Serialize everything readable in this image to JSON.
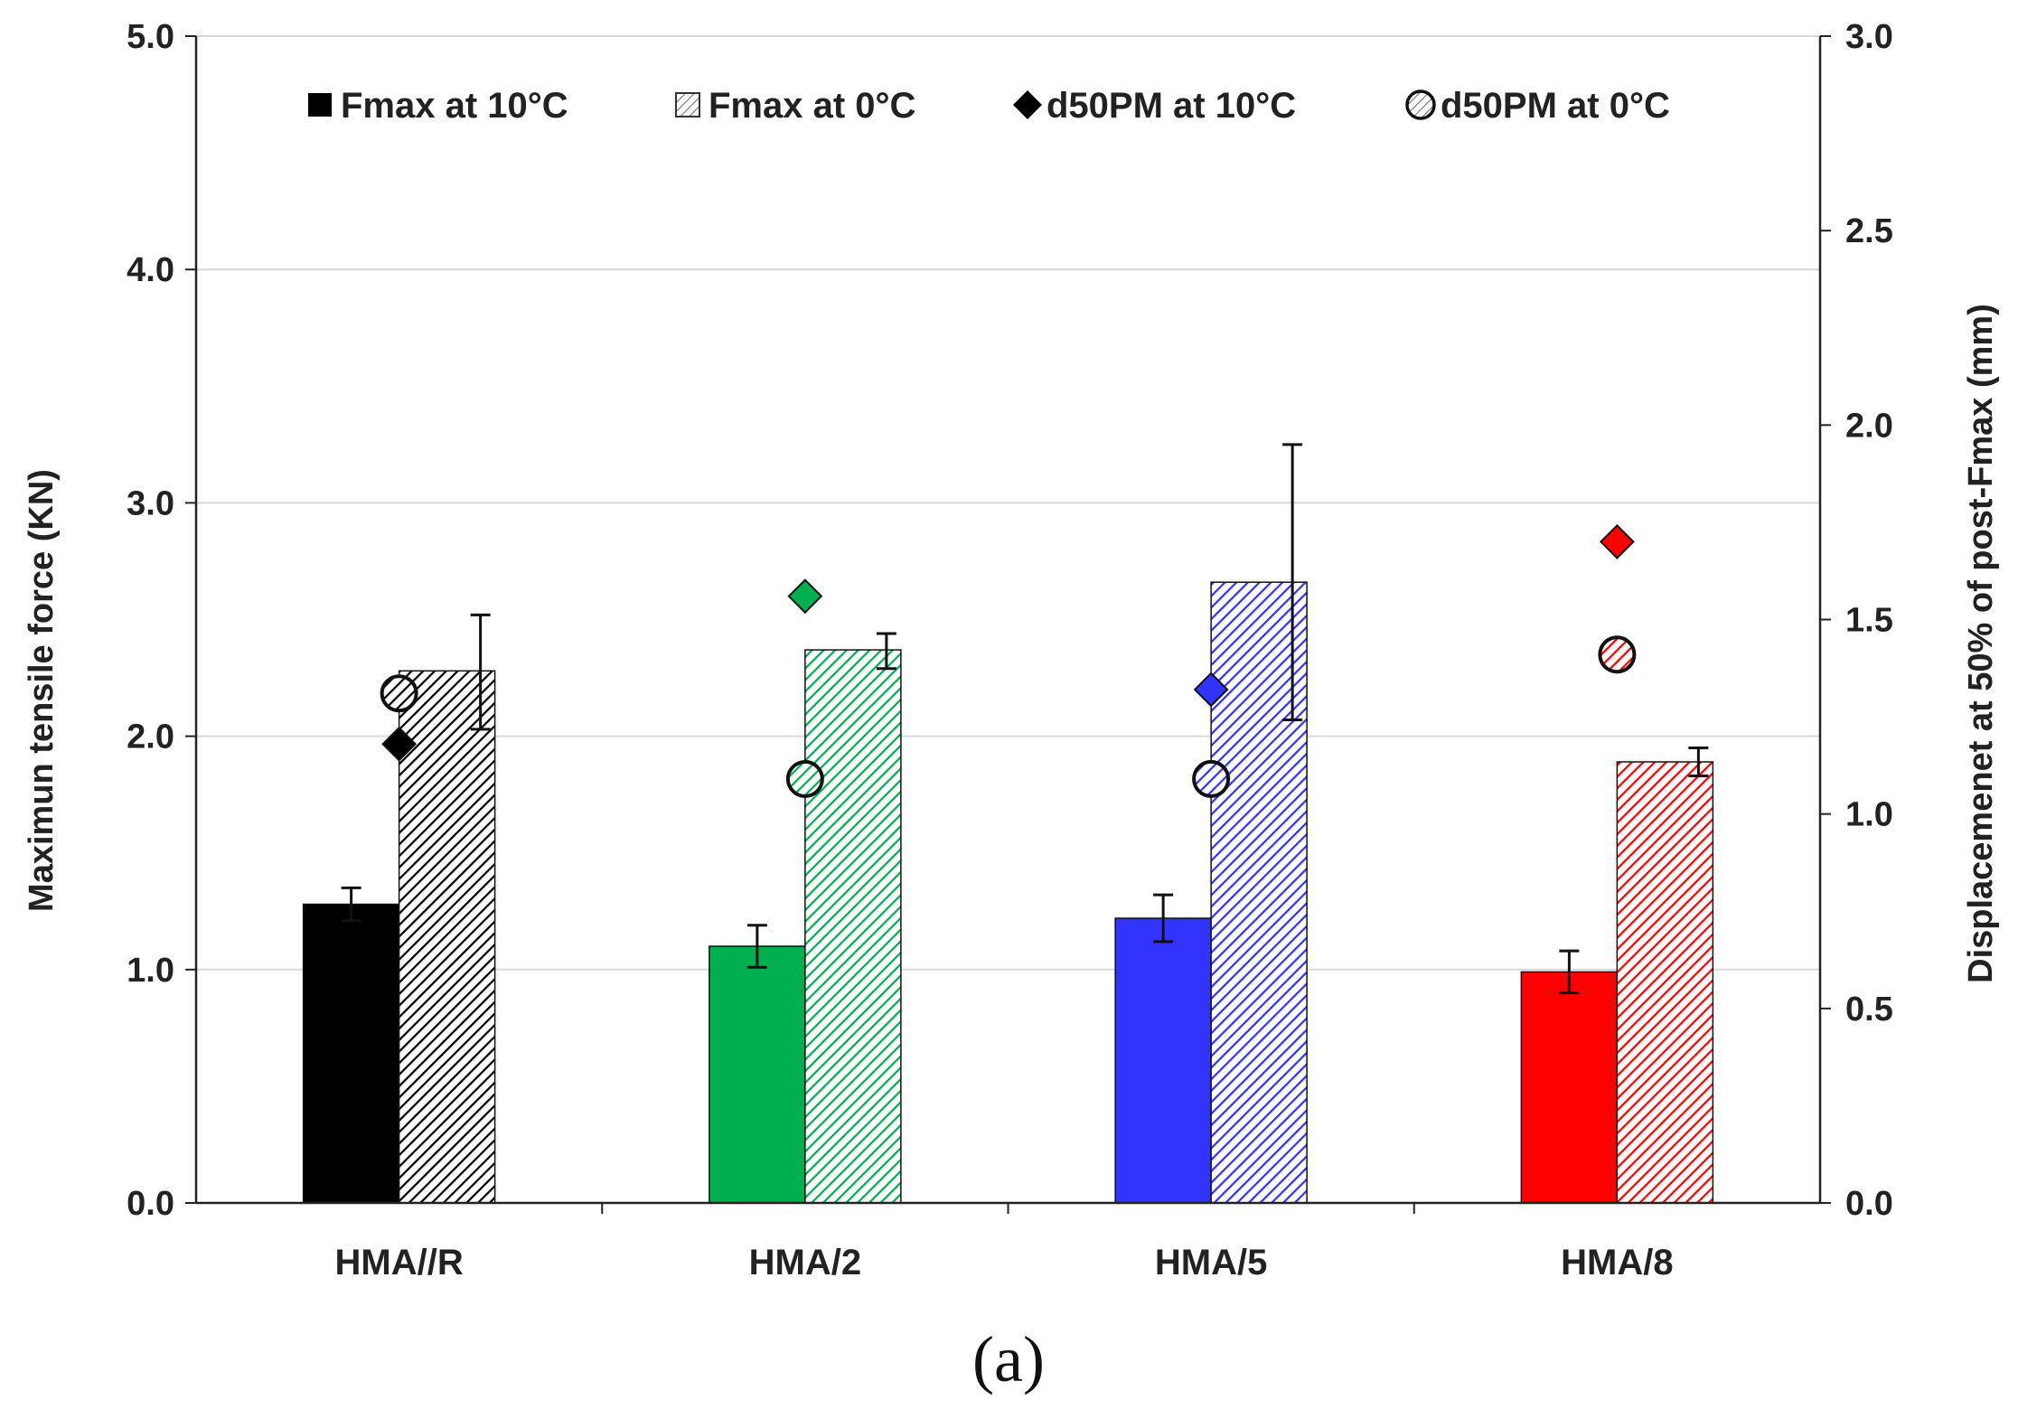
{
  "chart_data": {
    "type": "bar",
    "caption": "(a)",
    "categories": [
      "HMA//R",
      "HMA/2",
      "HMA/5",
      "HMA/8"
    ],
    "category_colors": [
      "#000000",
      "#00b050",
      "#3333ff",
      "#ff0000"
    ],
    "left_axis": {
      "label": "Maximun tensile force (KN)",
      "ylim": [
        0,
        5
      ],
      "ticks": [
        "0.0",
        "1.0",
        "2.0",
        "3.0",
        "4.0",
        "5.0"
      ]
    },
    "right_axis": {
      "label": "Displacemenet at 50% of post-Fmax (mm)",
      "ylim": [
        0,
        3
      ],
      "ticks": [
        "0.0",
        "0.5",
        "1.0",
        "1.5",
        "2.0",
        "2.5",
        "3.0"
      ]
    },
    "grid": true,
    "legend_position": "top",
    "legend": [
      {
        "label": "Fmax at 10°C",
        "marker": "solid-square"
      },
      {
        "label": "Fmax at 0°C",
        "marker": "hatched-square"
      },
      {
        "label": "d50PM at 10°C",
        "marker": "diamond"
      },
      {
        "label": "d50PM at 0°C",
        "marker": "hatched-circle"
      }
    ],
    "series": [
      {
        "name": "Fmax at 10°C",
        "axis": "left",
        "kind": "bar",
        "hatched": false,
        "values": [
          1.28,
          1.1,
          1.22,
          0.99
        ],
        "error": [
          0.07,
          0.09,
          0.1,
          0.09
        ]
      },
      {
        "name": "Fmax at 0°C",
        "axis": "left",
        "kind": "bar",
        "hatched": true,
        "values": [
          2.28,
          2.37,
          2.66,
          1.89
        ],
        "error_low": [
          0.25,
          0.08,
          0.59,
          0.06
        ],
        "error_high": [
          0.24,
          0.07,
          0.59,
          0.06
        ]
      },
      {
        "name": "d50PM at 10°C",
        "axis": "right",
        "kind": "diamond",
        "values": [
          1.18,
          1.56,
          1.32,
          1.7
        ]
      },
      {
        "name": "d50PM at 0°C",
        "axis": "right",
        "kind": "circle",
        "values": [
          1.31,
          1.09,
          1.09,
          1.41
        ]
      }
    ]
  }
}
